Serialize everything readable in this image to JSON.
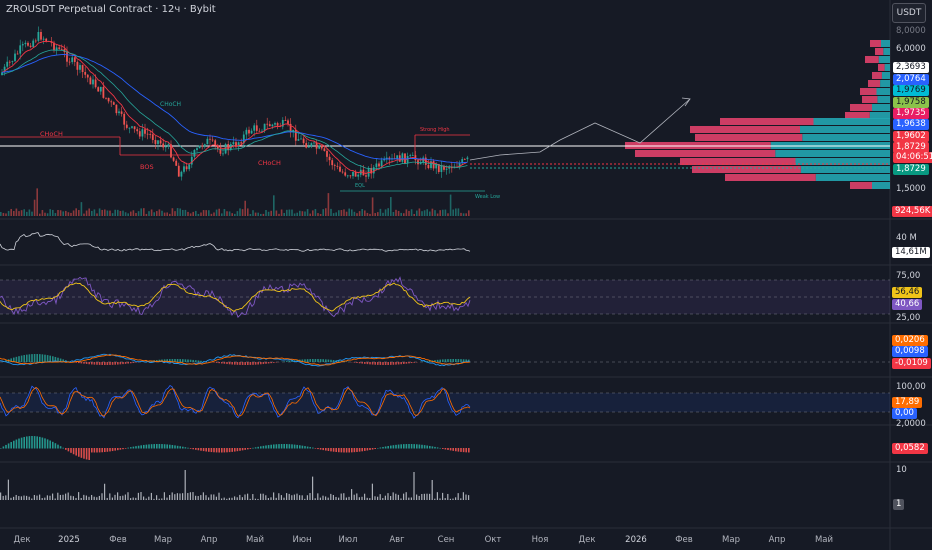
{
  "header": {
    "title": "ZROUSDT Perpetual Contract · 12ч · Bybit",
    "currency_button": "USDT"
  },
  "colors": {
    "background": "#161a25",
    "up": "#26a69a",
    "down": "#ef5350",
    "ema_short": "#f23645",
    "ema_long": "#2962ff",
    "rsi": "#7e57c2",
    "rsi_ma": "#f0c419",
    "macd": "#2196f3",
    "signal": "#ff6d00",
    "stoch_k": "#2962ff",
    "stoch_d": "#ff6d00",
    "volume_profile_up": "#22a6b3",
    "volume_profile_down": "#e0416b"
  },
  "price_axis": {
    "ticks": [
      "6,0000",
      "1,5000"
    ],
    "top_partial": "8,0000",
    "tags": [
      {
        "value": "2,3693",
        "bg": "#ffffff",
        "fg": "#131722"
      },
      {
        "value": "2,0764",
        "bg": "#2962ff",
        "fg": "#ffffff"
      },
      {
        "value": "1,9769",
        "bg": "#00bcd4",
        "fg": "#131722"
      },
      {
        "value": "1,9758",
        "bg": "#8bc34a",
        "fg": "#131722"
      },
      {
        "value": "1,9735",
        "bg": "#e91e63",
        "fg": "#ffffff"
      },
      {
        "value": "1,9638",
        "bg": "#2962ff",
        "fg": "#ffffff"
      },
      {
        "value": "1,9602",
        "bg": "#f23645",
        "fg": "#ffffff"
      },
      {
        "value": "1,8729",
        "bg": "#f23645",
        "fg": "#ffffff"
      },
      {
        "value": "04:06:51",
        "bg": "#f23645",
        "fg": "#ffffff"
      },
      {
        "value": "1,8729",
        "bg": "#089981",
        "fg": "#ffffff"
      }
    ]
  },
  "chart_annotations": {
    "choch": [
      "CHoCH",
      "CHoCH",
      "CHoCH",
      "CHoCH",
      "CHoCH"
    ],
    "bos": [
      "BOS",
      "BOS"
    ],
    "strong_high": "Strong High",
    "weak_low": "Weak Low",
    "eql": "EQL"
  },
  "volume_pane": {
    "value_tag": "924,56K"
  },
  "oi_pane": {
    "tick": "40 M",
    "value_tag": "14,61M"
  },
  "rsi_pane": {
    "ticks": [
      "75,00",
      "25,00"
    ],
    "tags": [
      "56,46",
      "40,66"
    ]
  },
  "macd_pane": {
    "tags": [
      "0,0206",
      "0,0098",
      "-0,0109"
    ]
  },
  "stoch_pane": {
    "ticks": [
      "100,00",
      "2,0000"
    ],
    "tags": [
      "17,89",
      "0,00"
    ]
  },
  "ao_pane": {
    "tag": "0,0582"
  },
  "bottom_pane": {
    "tick": "10",
    "tag": "1"
  },
  "x_axis": {
    "labels": [
      "Дек",
      "2025",
      "Фев",
      "Мар",
      "Апр",
      "Май",
      "Июн",
      "Июл",
      "Авг",
      "Сен",
      "Окт",
      "Ноя",
      "Дек",
      "2026",
      "Фев",
      "Мар",
      "Апр",
      "Май"
    ]
  }
}
